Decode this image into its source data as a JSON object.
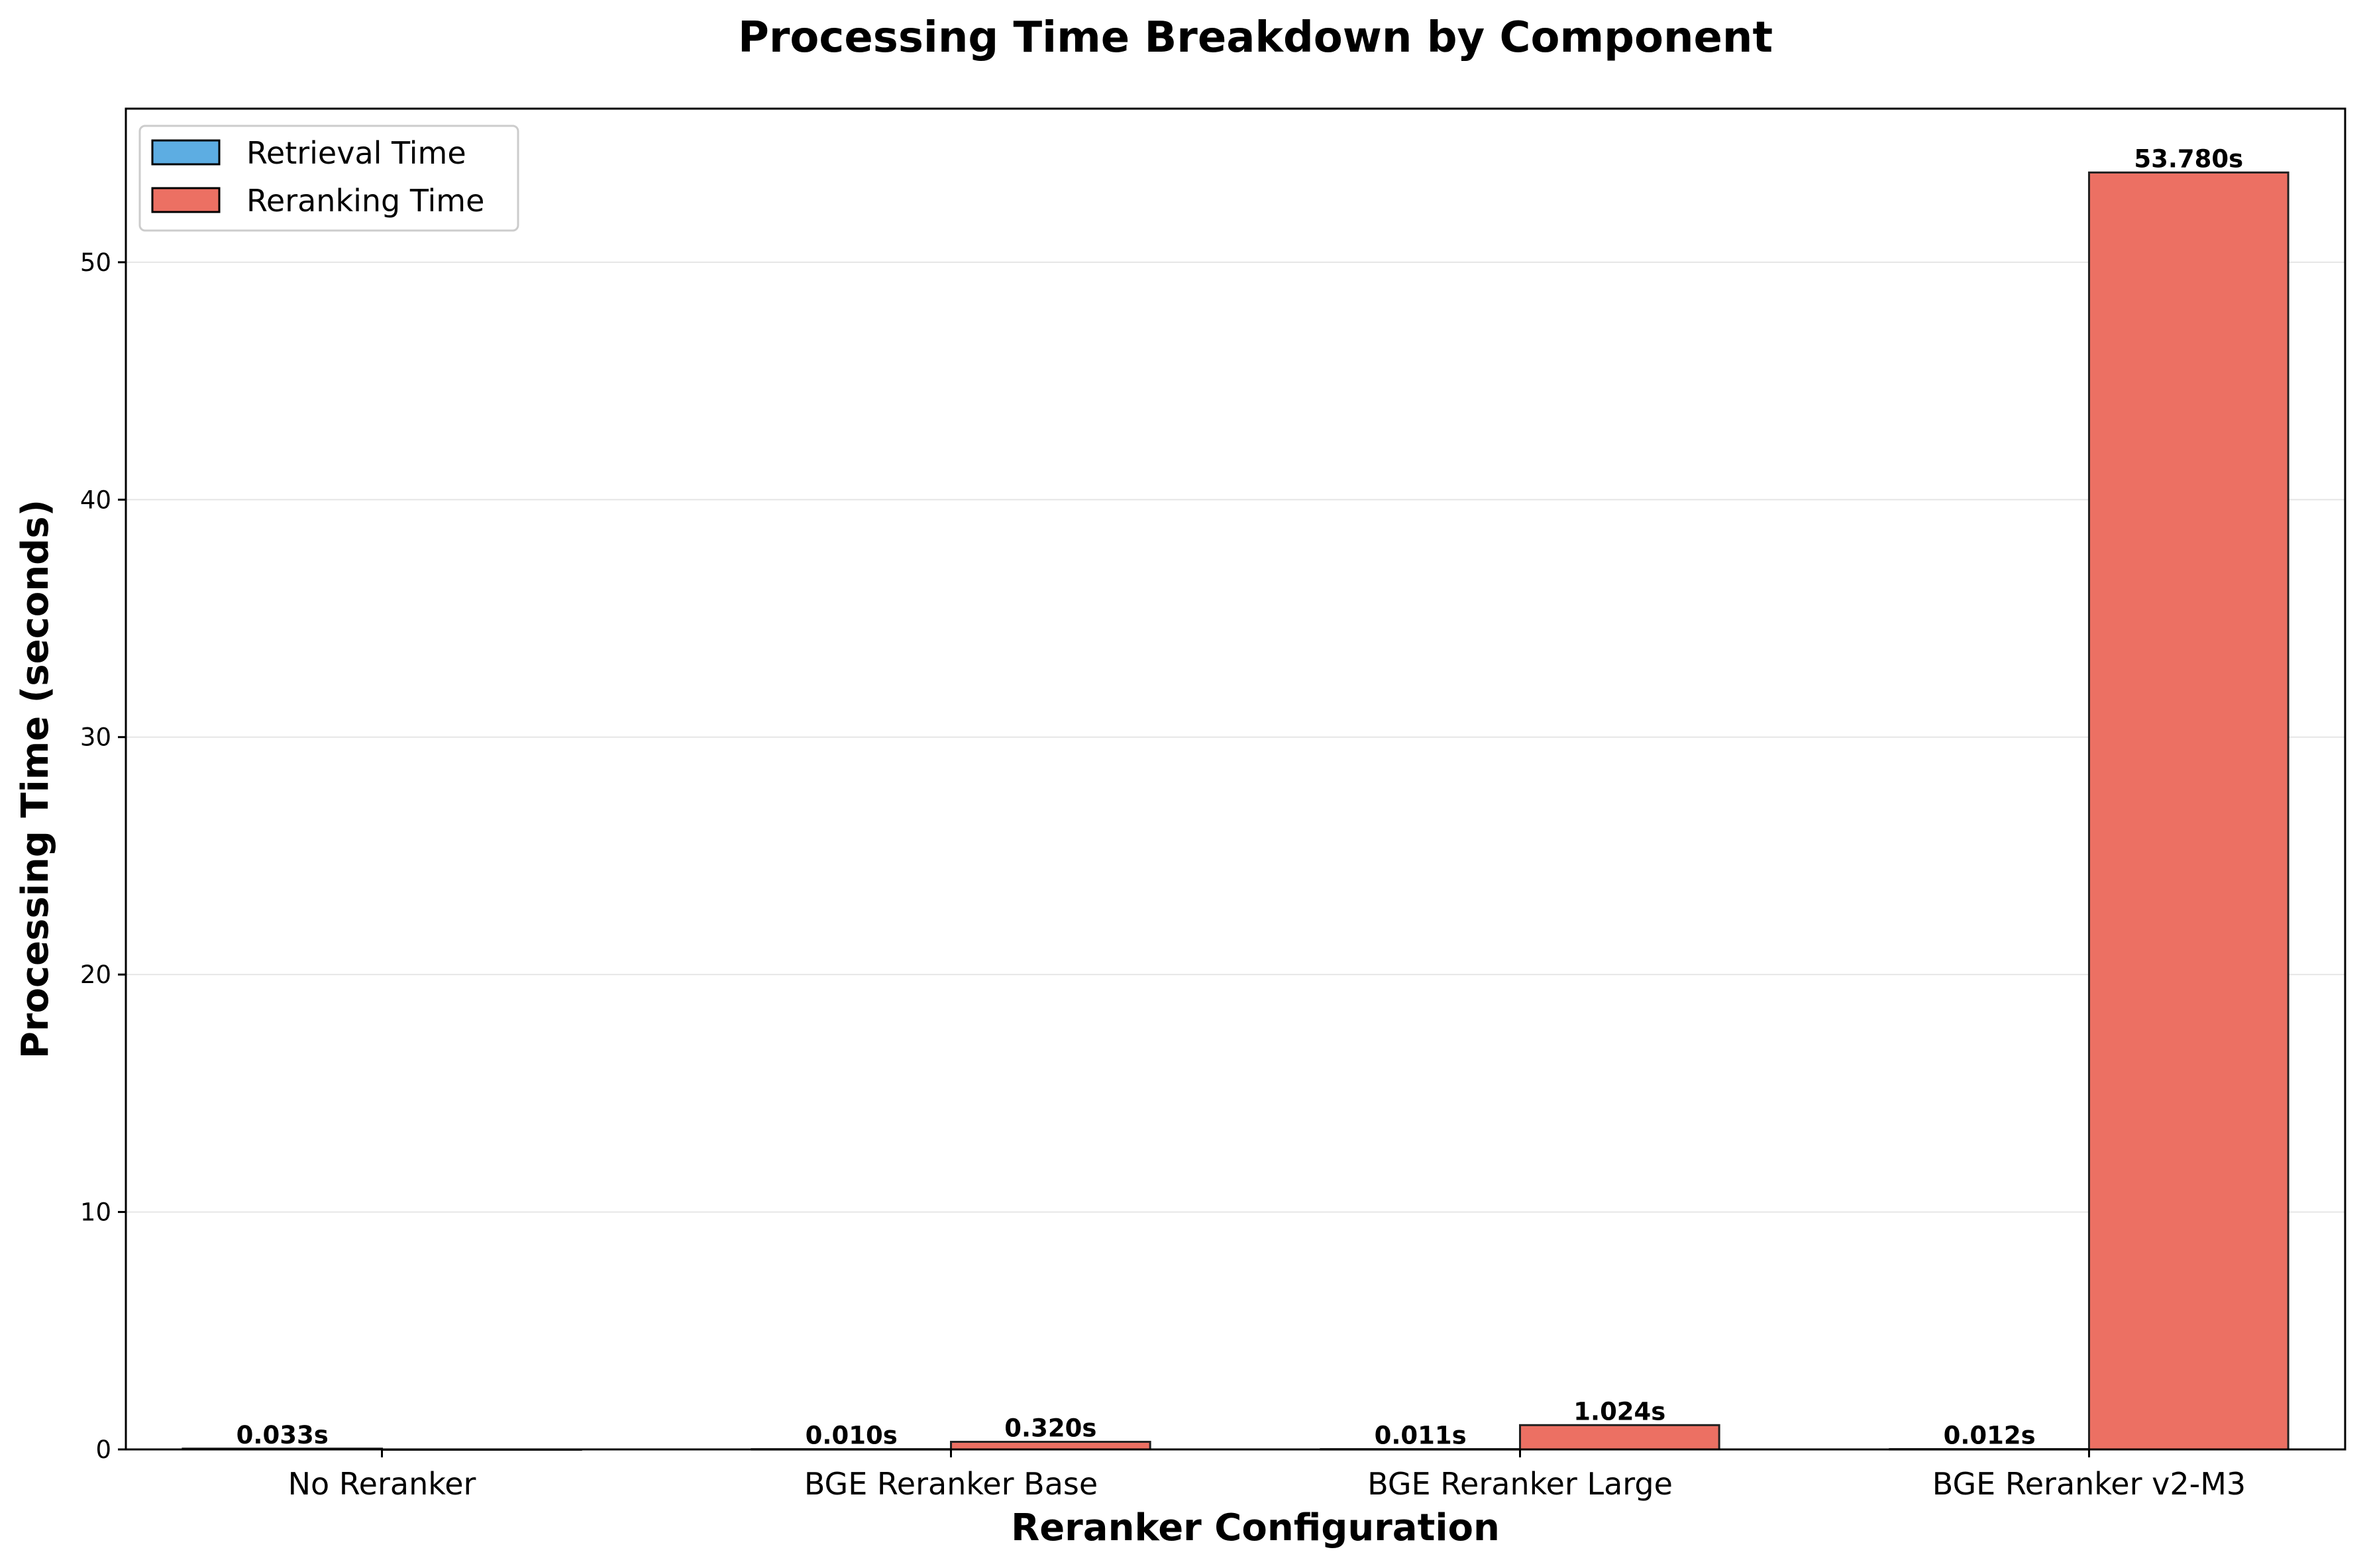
{
  "chart_data": {
    "type": "bar",
    "title": "Processing Time Breakdown by Component",
    "xlabel": "Reranker Configuration",
    "ylabel": "Processing Time (seconds)",
    "categories": [
      "No Reranker",
      "BGE Reranker Base",
      "BGE Reranker Large",
      "BGE Reranker v2-M3"
    ],
    "series": [
      {
        "name": "Retrieval Time",
        "color": "#5DADE2",
        "values": [
          0.033,
          0.01,
          0.011,
          0.012
        ],
        "labels": [
          "0.033s",
          "0.010s",
          "0.011s",
          "0.012s"
        ]
      },
      {
        "name": "Reranking Time",
        "color": "#EC7063",
        "values": [
          0.0,
          0.32,
          1.024,
          53.78
        ],
        "labels": [
          "",
          "0.320s",
          "1.024s",
          "53.780s"
        ]
      }
    ],
    "ylim": [
      0,
      56.469
    ],
    "yticks": [
      0,
      10,
      20,
      30,
      40,
      50
    ],
    "grid": "y",
    "legend_position": "top-left"
  }
}
